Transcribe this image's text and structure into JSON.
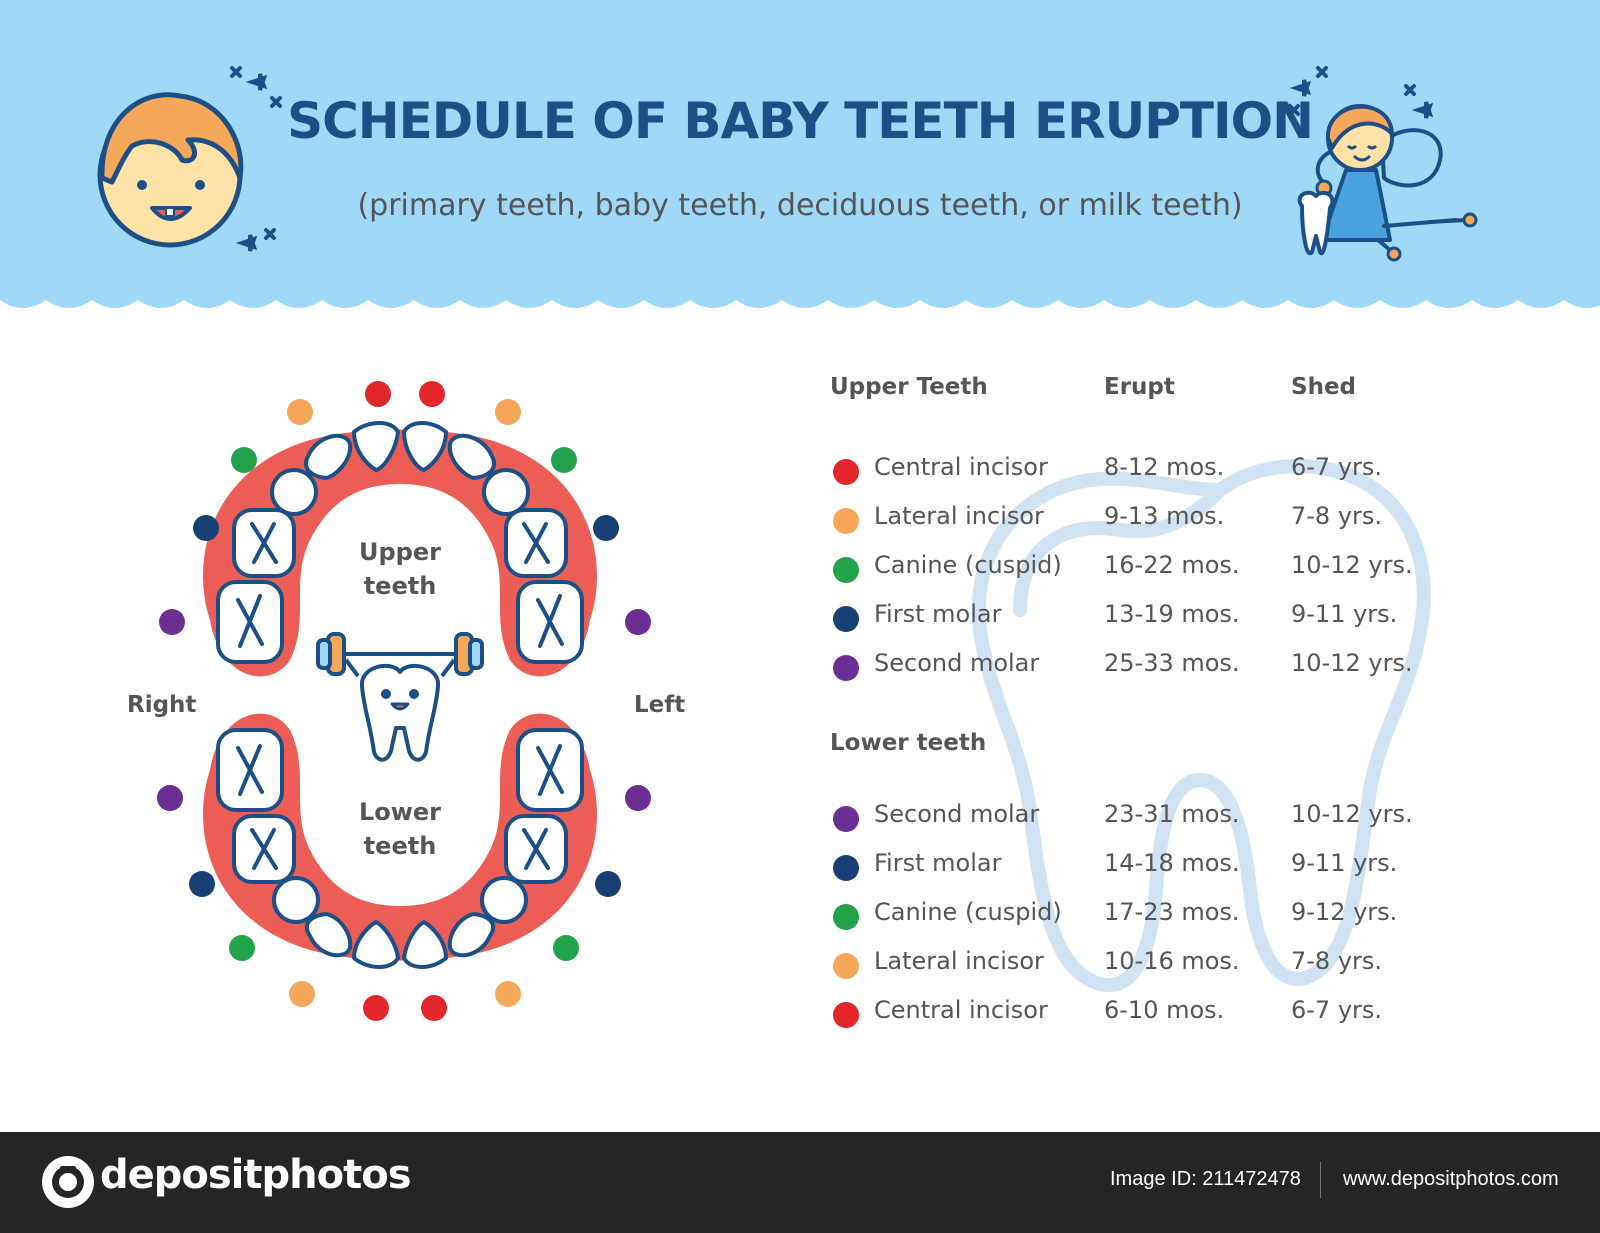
{
  "header": {
    "title": "SCHEDULE OF BABY TEETH ERUPTION",
    "subtitle": "(primary teeth, baby teeth, deciduous teeth, or milk teeth)",
    "background_color": "#9fd9f7",
    "title_color": "#1c4f86"
  },
  "diagram": {
    "upper_label_1": "Upper",
    "upper_label_2": "teeth",
    "lower_label_1": "Lower",
    "lower_label_2": "teeth",
    "right_label": "Right",
    "left_label": "Left",
    "gum_color": "#ec5d56"
  },
  "tooth_colors": {
    "central_incisor": "#e3262c",
    "lateral_incisor": "#f6a75a",
    "canine": "#22a34a",
    "first_molar": "#173f73",
    "second_molar": "#6b2f93"
  },
  "table": {
    "upper_header": "Upper Teeth",
    "erupt_header": "Erupt",
    "shed_header": "Shed",
    "lower_header": "Lower teeth",
    "upper_rows": [
      {
        "name": "Central incisor",
        "erupt": "8-12 mos.",
        "shed": "6-7 yrs.",
        "color": "#e3262c"
      },
      {
        "name": "Lateral incisor",
        "erupt": "9-13 mos.",
        "shed": "7-8 yrs.",
        "color": "#f6a75a"
      },
      {
        "name": "Canine (cuspid)",
        "erupt": "16-22 mos.",
        "shed": "10-12 yrs.",
        "color": "#22a34a"
      },
      {
        "name": "First molar",
        "erupt": "13-19 mos.",
        "shed": "9-11 yrs.",
        "color": "#173f73"
      },
      {
        "name": "Second molar",
        "erupt": "25-33 mos.",
        "shed": "10-12 yrs.",
        "color": "#6b2f93"
      }
    ],
    "lower_rows": [
      {
        "name": "Second molar",
        "erupt": "23-31 mos.",
        "shed": "10-12 yrs.",
        "color": "#6b2f93"
      },
      {
        "name": "First molar",
        "erupt": "14-18 mos.",
        "shed": "9-11 yrs.",
        "color": "#173f73"
      },
      {
        "name": "Canine (cuspid)",
        "erupt": "17-23 mos.",
        "shed": "9-12 yrs.",
        "color": "#22a34a"
      },
      {
        "name": "Lateral incisor",
        "erupt": "10-16 mos.",
        "shed": "7-8 yrs.",
        "color": "#f6a75a"
      },
      {
        "name": "Central incisor",
        "erupt": "6-10 mos.",
        "shed": "6-7 yrs.",
        "color": "#e3262c"
      }
    ]
  },
  "footer": {
    "brand": "depositphotos",
    "image_id": "Image ID: 211472478",
    "site_url": "www.depositphotos.com"
  }
}
